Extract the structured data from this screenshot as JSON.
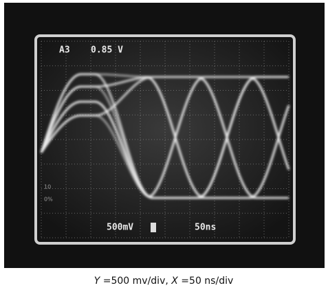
{
  "screen": {
    "channel": "A3",
    "level": "0.85 V",
    "volts_per_div": "500mV",
    "time_per_div": "50ns",
    "marker_high": "10",
    "marker_low": "0%"
  },
  "caption": {
    "parts": [
      "Y",
      " =500 mv/div,  ",
      "X",
      " =50 ns/div"
    ]
  }
}
